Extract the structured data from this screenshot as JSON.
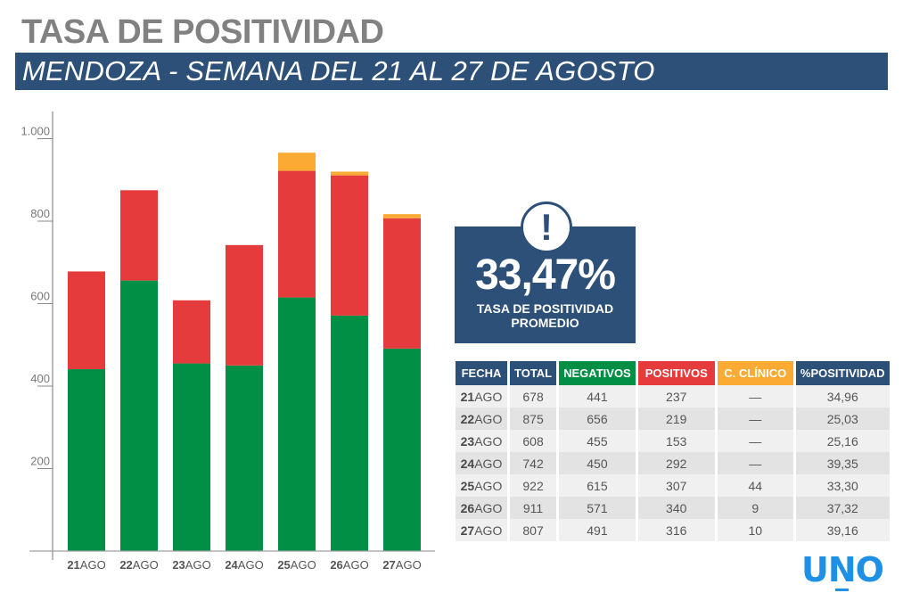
{
  "header": {
    "title": "TASA DE POSITIVIDAD",
    "subtitle": "MENDOZA - SEMANA DEL 21 AL 27 DE AGOSTO"
  },
  "kpi": {
    "icon": "exclamation-icon",
    "value": "33,47%",
    "label_line1": "TASA DE POSITIVIDAD",
    "label_line2": "PROMEDIO"
  },
  "colors": {
    "negativos": "#008f45",
    "positivos": "#e63b3d",
    "clinico": "#fbab33",
    "header_blue": "#2d5079",
    "logo_blue": "#1e90e6"
  },
  "chart_data": {
    "type": "bar",
    "stacked": true,
    "title": "TASA DE POSITIVIDAD",
    "xlabel": "",
    "ylabel": "",
    "ylim": [
      0,
      1000
    ],
    "yticks": [
      200,
      400,
      600,
      800,
      1000
    ],
    "ytick_labels": [
      "200",
      "400",
      "600",
      "800",
      "1.000"
    ],
    "categories": [
      {
        "day": "21",
        "month": "AGO"
      },
      {
        "day": "22",
        "month": "AGO"
      },
      {
        "day": "23",
        "month": "AGO"
      },
      {
        "day": "24",
        "month": "AGO"
      },
      {
        "day": "25",
        "month": "AGO"
      },
      {
        "day": "26",
        "month": "AGO"
      },
      {
        "day": "27",
        "month": "AGO"
      }
    ],
    "series": [
      {
        "name": "Negativos",
        "color": "#008f45",
        "values": [
          441,
          656,
          455,
          450,
          615,
          571,
          491
        ]
      },
      {
        "name": "Positivos",
        "color": "#e63b3d",
        "values": [
          237,
          219,
          153,
          292,
          307,
          340,
          316
        ]
      },
      {
        "name": "C. Clínico",
        "color": "#fbab33",
        "values": [
          0,
          0,
          0,
          0,
          44,
          9,
          10
        ]
      }
    ],
    "grid": false,
    "legend": "none"
  },
  "table": {
    "headers": [
      "FECHA",
      "TOTAL",
      "NEGATIVOS",
      "POSITIVOS",
      "C. CLÍNICO",
      "%POSITIVIDAD"
    ],
    "header_colors": [
      "#2d5079",
      "#2d5079",
      "#008f45",
      "#e63b3d",
      "#fbab33",
      "#2d5079"
    ],
    "rows": [
      {
        "day": "21",
        "month": "AGO",
        "total": "678",
        "negativos": "441",
        "positivos": "237",
        "clinico": "—",
        "positividad": "34,96"
      },
      {
        "day": "22",
        "month": "AGO",
        "total": "875",
        "negativos": "656",
        "positivos": "219",
        "clinico": "—",
        "positividad": "25,03"
      },
      {
        "day": "23",
        "month": "AGO",
        "total": "608",
        "negativos": "455",
        "positivos": "153",
        "clinico": "—",
        "positividad": "25,16"
      },
      {
        "day": "24",
        "month": "AGO",
        "total": "742",
        "negativos": "450",
        "positivos": "292",
        "clinico": "—",
        "positividad": "39,35"
      },
      {
        "day": "25",
        "month": "AGO",
        "total": "922",
        "negativos": "615",
        "positivos": "307",
        "clinico": "44",
        "positividad": "33,30"
      },
      {
        "day": "26",
        "month": "AGO",
        "total": "911",
        "negativos": "571",
        "positivos": "340",
        "clinico": "9",
        "positividad": "37,32"
      },
      {
        "day": "27",
        "month": "AGO",
        "total": "807",
        "negativos": "491",
        "positivos": "316",
        "clinico": "10",
        "positividad": "39,16"
      }
    ]
  },
  "logo": {
    "text_u": "U",
    "text_n": "N",
    "text_o": "O"
  }
}
